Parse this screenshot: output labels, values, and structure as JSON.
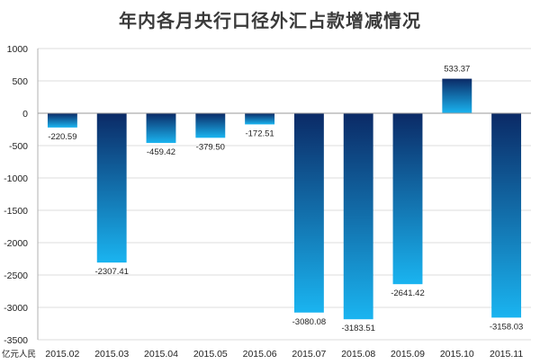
{
  "chart_data": {
    "type": "bar",
    "title": "年内各月央行口径外汇占款增减情况",
    "unit_label": "亿元人民",
    "categories": [
      "2015.02",
      "2015.03",
      "2015.04",
      "2015.05",
      "2015.06",
      "2015.07",
      "2015.08",
      "2015.09",
      "2015.10",
      "2015.11"
    ],
    "values": [
      -220.59,
      -2307.41,
      -459.42,
      -379.5,
      -172.51,
      -3080.08,
      -3183.51,
      -2641.42,
      533.37,
      -3158.03
    ],
    "value_labels": [
      "-220.59",
      "-2307.41",
      "-459.42",
      "-379.50",
      "-172.51",
      "-3080.08",
      "-3183.51",
      "-2641.42",
      "533.37",
      "-3158.03"
    ],
    "yticks": [
      "1000",
      "500",
      "0",
      "-500",
      "-1000",
      "-1500",
      "-2000",
      "-2500",
      "-3000",
      "-3500"
    ],
    "ylim": [
      -3500,
      1000
    ],
    "grid": true,
    "colors": {
      "bar_dark": "#0b2a66",
      "bar_light": "#1ab4f0",
      "grid": "#dcdcdc",
      "axis": "#b0b0b0"
    }
  }
}
